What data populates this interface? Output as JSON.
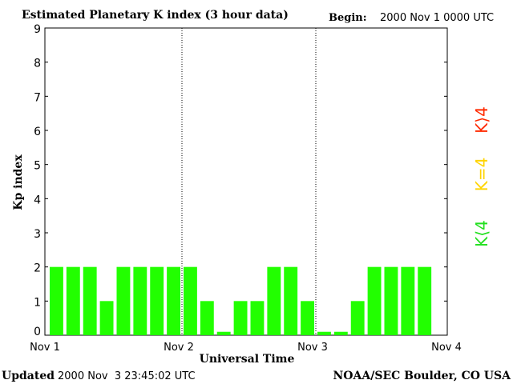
{
  "header": {
    "title": "Estimated Planetary K index (3 hour data)",
    "begin_label": "Begin:",
    "begin_value": "2000 Nov 1 0000 UTC"
  },
  "footer": {
    "updated_label": "Updated",
    "updated_value": "2000 Nov  3 23:45:02 UTC",
    "source": "NOAA/SEC Boulder, CO USA"
  },
  "legend": {
    "high": {
      "text": "K⟩4",
      "color": "#ff2a00"
    },
    "equal": {
      "text": "K=4",
      "color": "#ffd400"
    },
    "low": {
      "text": "K⟨4",
      "color": "#22e01f"
    }
  },
  "chart_data": {
    "type": "bar",
    "title": "Estimated Planetary K index (3 hour data)",
    "xlabel": "Universal Time",
    "ylabel": "Kp index",
    "ylim": [
      0,
      9
    ],
    "yticks": [
      0,
      1,
      2,
      3,
      4,
      5,
      6,
      7,
      8,
      9
    ],
    "x_tick_labels": [
      "Nov 1",
      "Nov 2",
      "Nov 3",
      "Nov 4"
    ],
    "day_separators": [
      "Nov 2",
      "Nov 3"
    ],
    "interval_hours": 3,
    "bar_color": "#22ff00",
    "values": [
      2,
      2,
      2,
      1,
      2,
      2,
      2,
      2,
      2,
      1,
      0.1,
      1,
      1,
      2,
      2,
      1,
      0.1,
      0.1,
      1,
      2,
      2,
      2,
      2
    ]
  }
}
